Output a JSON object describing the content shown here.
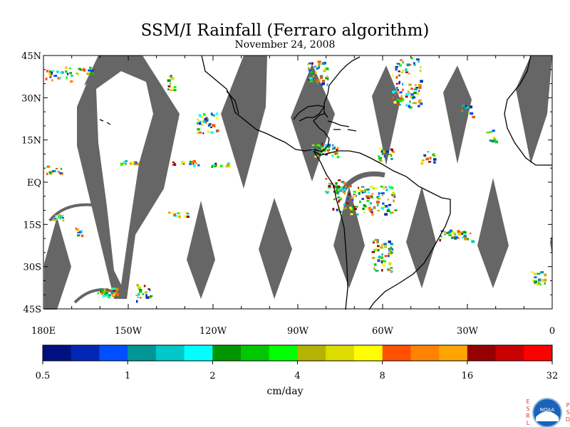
{
  "title": "SSM/I Rainfall (Ferraro algorithm)",
  "subtitle": "November 24, 2008",
  "lat_labels": [
    {
      "lat": 45,
      "label": "45N"
    },
    {
      "lat": 30,
      "label": "30N"
    },
    {
      "lat": 15,
      "label": "15N"
    },
    {
      "lat": 0,
      "label": "EQ"
    },
    {
      "lat": -15,
      "label": "15S"
    },
    {
      "lat": -30,
      "label": "30S"
    },
    {
      "lat": -45,
      "label": "45S"
    }
  ],
  "lon_labels": [
    {
      "lon": -180,
      "label": "180E"
    },
    {
      "lon": -150,
      "label": "150W"
    },
    {
      "lon": -120,
      "label": "120W"
    },
    {
      "lon": -90,
      "label": "90W"
    },
    {
      "lon": -60,
      "label": "60W"
    },
    {
      "lon": -30,
      "label": "30W"
    },
    {
      "lon": 0,
      "label": "0"
    }
  ],
  "map_extent": {
    "lon": [
      -180,
      0
    ],
    "lat": [
      -45,
      45
    ]
  },
  "colorbar": {
    "colors": [
      "#001080",
      "#0028b4",
      "#0050ff",
      "#009696",
      "#00c8c8",
      "#00ffff",
      "#009600",
      "#00c800",
      "#00ff00",
      "#b4b400",
      "#dcdc00",
      "#ffff00",
      "#ff5000",
      "#ff8200",
      "#ffa500",
      "#960000",
      "#c80000",
      "#ff0000"
    ],
    "tick_labels": [
      "0.5",
      "1",
      "2",
      "4",
      "8",
      "16",
      "32"
    ],
    "unit_label": "cm/day"
  },
  "logo": {
    "left_letters": "ESRL",
    "right_letters": "PSD",
    "badge": "NOAA"
  },
  "colors": {
    "swath_gap": "#666666",
    "coast": "#000000"
  }
}
